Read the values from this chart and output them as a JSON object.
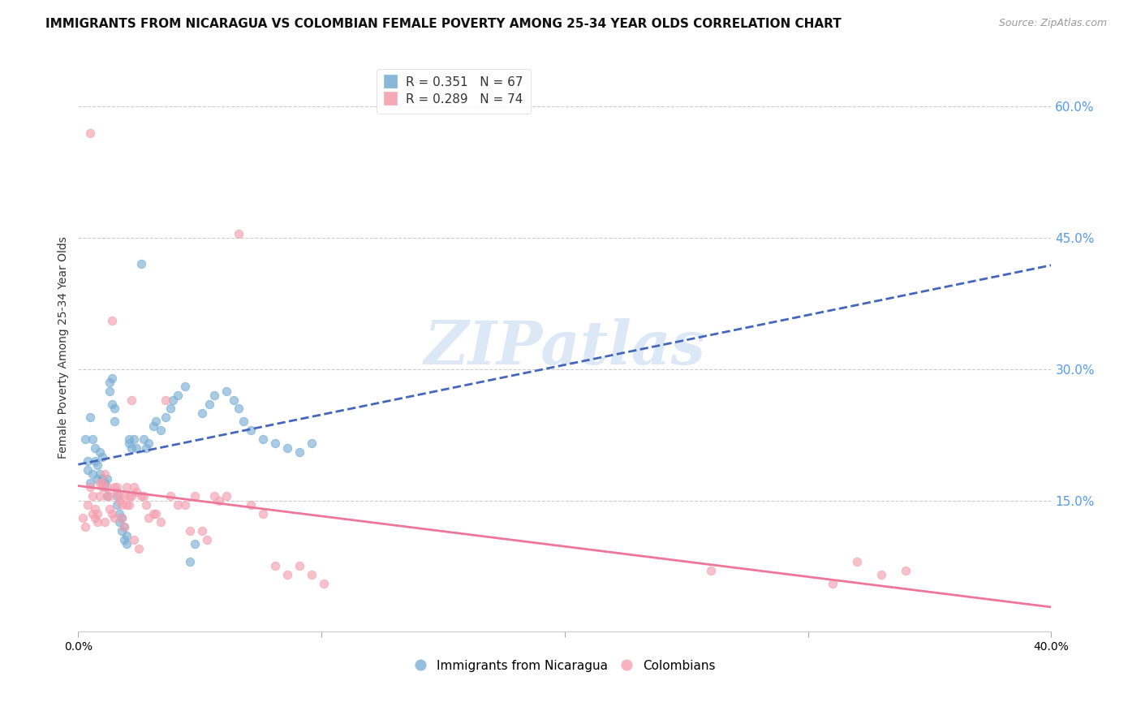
{
  "title": "IMMIGRANTS FROM NICARAGUA VS COLOMBIAN FEMALE POVERTY AMONG 25-34 YEAR OLDS CORRELATION CHART",
  "source": "Source: ZipAtlas.com",
  "ylabel": "Female Poverty Among 25-34 Year Olds",
  "ytick_values": [
    0.15,
    0.3,
    0.45,
    0.6
  ],
  "xlim": [
    0.0,
    0.4
  ],
  "ylim": [
    0.0,
    0.65
  ],
  "nicaragua_color": "#7bafd4",
  "colombia_color": "#f4a0b0",
  "trend_nicaragua_color": "#4466bb",
  "trend_colombia_color": "#ee7799",
  "watermark": "ZIPatlas",
  "watermark_color": "#dce8f5",
  "background_color": "#ffffff",
  "nicaragua_scatter": [
    [
      0.003,
      0.22
    ],
    [
      0.004,
      0.195
    ],
    [
      0.004,
      0.185
    ],
    [
      0.005,
      0.245
    ],
    [
      0.005,
      0.17
    ],
    [
      0.006,
      0.22
    ],
    [
      0.006,
      0.18
    ],
    [
      0.007,
      0.21
    ],
    [
      0.007,
      0.195
    ],
    [
      0.008,
      0.19
    ],
    [
      0.008,
      0.175
    ],
    [
      0.009,
      0.205
    ],
    [
      0.009,
      0.18
    ],
    [
      0.01,
      0.2
    ],
    [
      0.01,
      0.175
    ],
    [
      0.011,
      0.17
    ],
    [
      0.011,
      0.165
    ],
    [
      0.012,
      0.175
    ],
    [
      0.012,
      0.155
    ],
    [
      0.013,
      0.285
    ],
    [
      0.013,
      0.275
    ],
    [
      0.014,
      0.29
    ],
    [
      0.014,
      0.26
    ],
    [
      0.015,
      0.255
    ],
    [
      0.015,
      0.24
    ],
    [
      0.016,
      0.155
    ],
    [
      0.016,
      0.145
    ],
    [
      0.017,
      0.135
    ],
    [
      0.017,
      0.125
    ],
    [
      0.018,
      0.115
    ],
    [
      0.018,
      0.13
    ],
    [
      0.019,
      0.12
    ],
    [
      0.019,
      0.105
    ],
    [
      0.02,
      0.11
    ],
    [
      0.02,
      0.1
    ],
    [
      0.021,
      0.22
    ],
    [
      0.021,
      0.215
    ],
    [
      0.022,
      0.21
    ],
    [
      0.023,
      0.22
    ],
    [
      0.024,
      0.21
    ],
    [
      0.026,
      0.42
    ],
    [
      0.027,
      0.22
    ],
    [
      0.028,
      0.21
    ],
    [
      0.029,
      0.215
    ],
    [
      0.031,
      0.235
    ],
    [
      0.032,
      0.24
    ],
    [
      0.034,
      0.23
    ],
    [
      0.036,
      0.245
    ],
    [
      0.038,
      0.255
    ],
    [
      0.039,
      0.265
    ],
    [
      0.041,
      0.27
    ],
    [
      0.044,
      0.28
    ],
    [
      0.046,
      0.08
    ],
    [
      0.048,
      0.1
    ],
    [
      0.051,
      0.25
    ],
    [
      0.054,
      0.26
    ],
    [
      0.056,
      0.27
    ],
    [
      0.061,
      0.275
    ],
    [
      0.064,
      0.265
    ],
    [
      0.066,
      0.255
    ],
    [
      0.068,
      0.24
    ],
    [
      0.071,
      0.23
    ],
    [
      0.076,
      0.22
    ],
    [
      0.081,
      0.215
    ],
    [
      0.086,
      0.21
    ],
    [
      0.091,
      0.205
    ],
    [
      0.096,
      0.215
    ]
  ],
  "colombia_scatter": [
    [
      0.002,
      0.13
    ],
    [
      0.003,
      0.12
    ],
    [
      0.004,
      0.145
    ],
    [
      0.005,
      0.165
    ],
    [
      0.005,
      0.57
    ],
    [
      0.006,
      0.155
    ],
    [
      0.006,
      0.135
    ],
    [
      0.007,
      0.14
    ],
    [
      0.007,
      0.13
    ],
    [
      0.008,
      0.125
    ],
    [
      0.008,
      0.135
    ],
    [
      0.009,
      0.17
    ],
    [
      0.009,
      0.155
    ],
    [
      0.01,
      0.165
    ],
    [
      0.01,
      0.17
    ],
    [
      0.011,
      0.18
    ],
    [
      0.011,
      0.125
    ],
    [
      0.012,
      0.165
    ],
    [
      0.012,
      0.155
    ],
    [
      0.013,
      0.155
    ],
    [
      0.013,
      0.14
    ],
    [
      0.014,
      0.135
    ],
    [
      0.014,
      0.355
    ],
    [
      0.015,
      0.13
    ],
    [
      0.015,
      0.165
    ],
    [
      0.016,
      0.165
    ],
    [
      0.016,
      0.16
    ],
    [
      0.017,
      0.155
    ],
    [
      0.017,
      0.15
    ],
    [
      0.018,
      0.145
    ],
    [
      0.018,
      0.13
    ],
    [
      0.019,
      0.12
    ],
    [
      0.019,
      0.155
    ],
    [
      0.02,
      0.145
    ],
    [
      0.02,
      0.165
    ],
    [
      0.021,
      0.155
    ],
    [
      0.021,
      0.145
    ],
    [
      0.022,
      0.155
    ],
    [
      0.022,
      0.265
    ],
    [
      0.023,
      0.105
    ],
    [
      0.023,
      0.165
    ],
    [
      0.024,
      0.16
    ],
    [
      0.025,
      0.095
    ],
    [
      0.026,
      0.155
    ],
    [
      0.027,
      0.155
    ],
    [
      0.028,
      0.145
    ],
    [
      0.029,
      0.13
    ],
    [
      0.031,
      0.135
    ],
    [
      0.032,
      0.135
    ],
    [
      0.034,
      0.125
    ],
    [
      0.036,
      0.265
    ],
    [
      0.038,
      0.155
    ],
    [
      0.041,
      0.145
    ],
    [
      0.044,
      0.145
    ],
    [
      0.046,
      0.115
    ],
    [
      0.048,
      0.155
    ],
    [
      0.051,
      0.115
    ],
    [
      0.053,
      0.105
    ],
    [
      0.056,
      0.155
    ],
    [
      0.058,
      0.15
    ],
    [
      0.061,
      0.155
    ],
    [
      0.066,
      0.455
    ],
    [
      0.071,
      0.145
    ],
    [
      0.076,
      0.135
    ],
    [
      0.081,
      0.075
    ],
    [
      0.086,
      0.065
    ],
    [
      0.091,
      0.075
    ],
    [
      0.096,
      0.065
    ],
    [
      0.101,
      0.055
    ],
    [
      0.26,
      0.07
    ],
    [
      0.31,
      0.055
    ],
    [
      0.32,
      0.08
    ],
    [
      0.33,
      0.065
    ],
    [
      0.34,
      0.07
    ]
  ]
}
